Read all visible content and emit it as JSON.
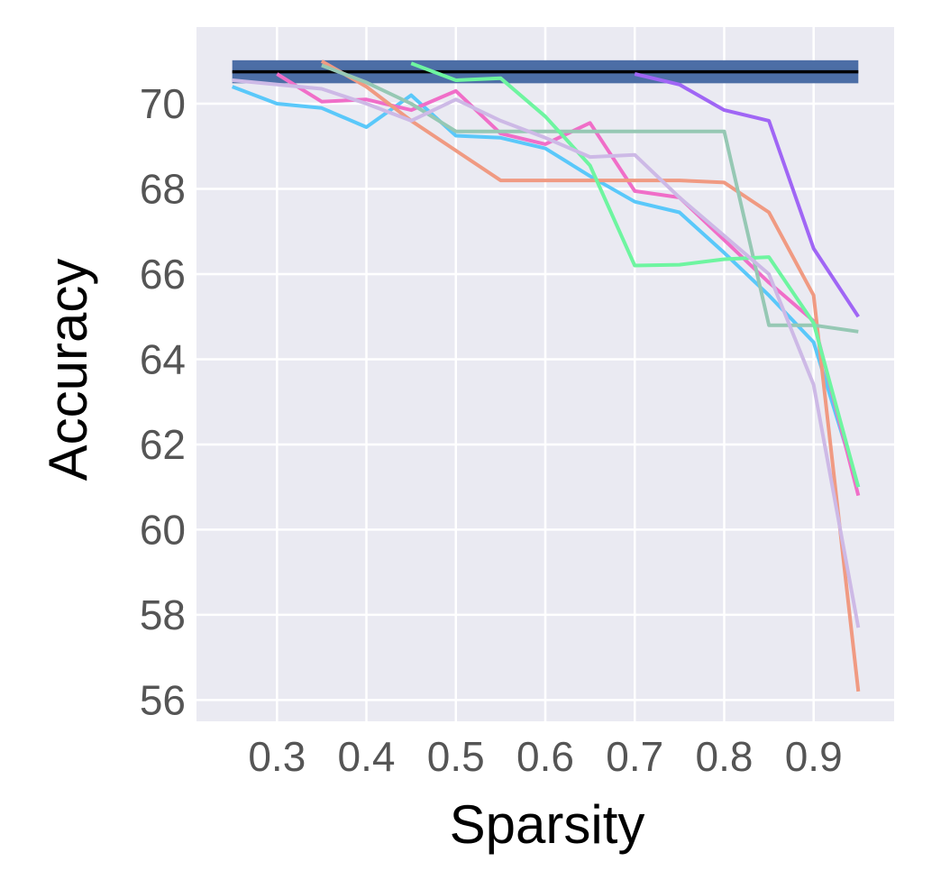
{
  "chart_data": {
    "type": "line",
    "title": "",
    "xlabel": "Sparsity",
    "ylabel": "Accuracy",
    "xlim": [
      0.21,
      0.99
    ],
    "ylim": [
      55.5,
      71.8
    ],
    "xticks": [
      0.3,
      0.4,
      0.5,
      0.6,
      0.7,
      0.8,
      0.9
    ],
    "xtick_labels": [
      "0.3",
      "0.4",
      "0.5",
      "0.6",
      "0.7",
      "0.8",
      "0.9"
    ],
    "yticks": [
      56,
      58,
      60,
      62,
      64,
      66,
      68,
      70
    ],
    "ytick_labels": [
      "56",
      "58",
      "60",
      "62",
      "64",
      "66",
      "68",
      "70"
    ],
    "grid": true,
    "background": "#eaeaf2",
    "baseline": {
      "value": 70.75,
      "band_low": 70.48,
      "band_high": 71.02,
      "x_range": [
        0.25,
        0.95
      ],
      "line_color": "#000000",
      "band_color": "#4c6ea6"
    },
    "series": [
      {
        "color": "#5ac8fa",
        "x": [
          0.25,
          0.3,
          0.35,
          0.4,
          0.45,
          0.5,
          0.55,
          0.6,
          0.65,
          0.7,
          0.75,
          0.8,
          0.85,
          0.9,
          0.95
        ],
        "y": [
          70.4,
          70.0,
          69.9,
          69.45,
          70.2,
          69.25,
          69.2,
          68.95,
          68.3,
          67.7,
          67.45,
          66.5,
          65.5,
          64.4,
          61.0
        ]
      },
      {
        "color": "#f06ec8",
        "x": [
          0.3,
          0.35,
          0.4,
          0.45,
          0.5,
          0.55,
          0.6,
          0.65,
          0.7,
          0.75,
          0.8,
          0.85,
          0.9,
          0.95
        ],
        "y": [
          70.7,
          70.05,
          70.1,
          69.85,
          70.3,
          69.3,
          69.05,
          69.55,
          67.95,
          67.8,
          66.8,
          65.8,
          64.9,
          60.8
        ]
      },
      {
        "color": "#f09a82",
        "x": [
          0.35,
          0.4,
          0.45,
          0.5,
          0.55,
          0.6,
          0.65,
          0.7,
          0.75,
          0.8,
          0.85,
          0.9,
          0.95
        ],
        "y": [
          71.0,
          70.4,
          69.6,
          68.9,
          68.2,
          68.2,
          68.2,
          68.2,
          68.2,
          68.15,
          67.45,
          65.5,
          56.2
        ]
      },
      {
        "color": "#96c8b4",
        "x": [
          0.35,
          0.4,
          0.45,
          0.5,
          0.55,
          0.6,
          0.65,
          0.7,
          0.75,
          0.8,
          0.85,
          0.9,
          0.95
        ],
        "y": [
          70.9,
          70.5,
          70.0,
          69.35,
          69.35,
          69.35,
          69.35,
          69.35,
          69.35,
          69.35,
          64.8,
          64.8,
          64.65
        ]
      },
      {
        "color": "#6ef5a0",
        "x": [
          0.45,
          0.5,
          0.55,
          0.6,
          0.65,
          0.7,
          0.75,
          0.8,
          0.85,
          0.9,
          0.95
        ],
        "y": [
          70.95,
          70.55,
          70.6,
          69.7,
          68.55,
          66.2,
          66.22,
          66.35,
          66.4,
          64.85,
          61.0
        ]
      },
      {
        "color": "#a066f5",
        "x": [
          0.7,
          0.75,
          0.8,
          0.85,
          0.9,
          0.95
        ],
        "y": [
          70.7,
          70.45,
          69.85,
          69.6,
          66.6,
          65.0
        ]
      },
      {
        "color": "#cdb9e6",
        "x": [
          0.25,
          0.3,
          0.35,
          0.4,
          0.45,
          0.5,
          0.55,
          0.6,
          0.65,
          0.7,
          0.75,
          0.8,
          0.85,
          0.9,
          0.95
        ],
        "y": [
          70.55,
          70.45,
          70.35,
          70.0,
          69.6,
          70.1,
          69.6,
          69.2,
          68.75,
          68.8,
          67.8,
          66.9,
          66.0,
          63.4,
          57.7
        ]
      }
    ]
  }
}
